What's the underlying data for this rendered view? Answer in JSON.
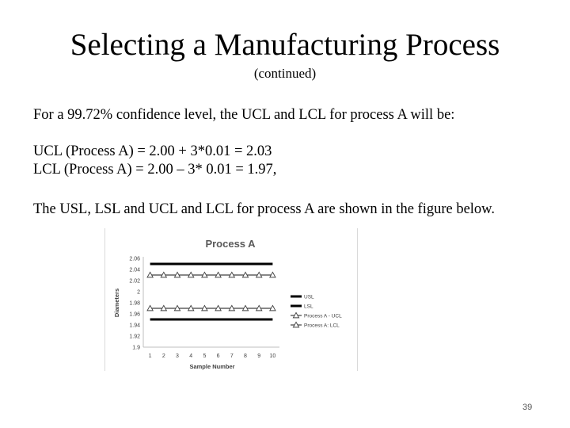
{
  "slide": {
    "title": "Selecting a Manufacturing Process",
    "subtitle": "(continued)",
    "line1": "For a 99.72% confidence level, the UCL and LCL for process A will be:",
    "line2": "UCL (Process A) = 2.00 + 3*0.01 = 2.03",
    "line3": "LCL (Process A) = 2.00 – 3* 0.01 = 1.97,",
    "line4": "The USL, LSL and UCL and LCL for process A are shown in the figure below.",
    "page_number": "39"
  },
  "chart_data": {
    "type": "line",
    "title": "Process A",
    "xlabel": "Sample Number",
    "ylabel": "Diameters",
    "x": [
      1,
      2,
      3,
      4,
      5,
      6,
      7,
      8,
      9,
      10
    ],
    "xticks": [
      "1",
      "2",
      "3",
      "4",
      "5",
      "6",
      "7",
      "8",
      "9",
      "10"
    ],
    "yticks": [
      "2.06",
      "2.04",
      "2.02",
      "2",
      "1.98",
      "1.96",
      "1.94",
      "1.92",
      "1.9"
    ],
    "ylim": [
      1.9,
      2.06
    ],
    "legend_position": "right",
    "series": [
      {
        "name": "USL",
        "values": [
          2.05,
          2.05,
          2.05,
          2.05,
          2.05,
          2.05,
          2.05,
          2.05,
          2.05,
          2.05
        ],
        "color": "#000000",
        "marker": "none",
        "thick": true
      },
      {
        "name": "LSL",
        "values": [
          1.95,
          1.95,
          1.95,
          1.95,
          1.95,
          1.95,
          1.95,
          1.95,
          1.95,
          1.95
        ],
        "color": "#000000",
        "marker": "none",
        "thick": true
      },
      {
        "name": "Process A - UCL",
        "values": [
          2.03,
          2.03,
          2.03,
          2.03,
          2.03,
          2.03,
          2.03,
          2.03,
          2.03,
          2.03
        ],
        "color": "#404040",
        "marker": "triangle",
        "thick": false
      },
      {
        "name": "Process A: LCL",
        "values": [
          1.97,
          1.97,
          1.97,
          1.97,
          1.97,
          1.97,
          1.97,
          1.97,
          1.97,
          1.97
        ],
        "color": "#404040",
        "marker": "triangle",
        "thick": false
      }
    ]
  }
}
